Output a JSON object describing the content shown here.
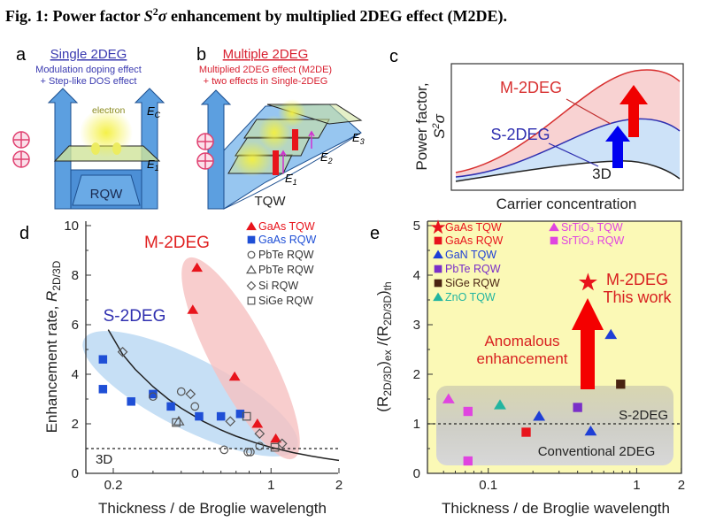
{
  "figure": {
    "title_pre": "Fig. 1: Power factor ",
    "title_s": "S",
    "title_sup": "2",
    "title_sigma": "σ",
    "title_post": " enhancement by multiplied 2DEG effect (M2DE)."
  },
  "colors": {
    "red": "#e8141c",
    "blue": "#1f4fd6",
    "navy": "#3a3ab0",
    "well_fill": "#5c9fe0",
    "well_stroke": "#1d4f8f",
    "panel_e_bg": "#fbf9b6",
    "teal": "#22b5a0",
    "magenta": "#e044e0",
    "purple": "#7a2fc8",
    "brown": "#4a2412"
  },
  "panel_a": {
    "label": "a",
    "heading": "Single 2DEG",
    "line1": "Modulation doping effect",
    "line2": "+ Step-like DOS effect",
    "electron": "electron",
    "ec": "E",
    "ec_sub": "C",
    "e1": "E",
    "e1_sub": "1",
    "well": "RQW",
    "donor_icon": "plus-circle-icon"
  },
  "panel_b": {
    "label": "b",
    "heading": "Multiple 2DEG",
    "line1": "Multiplied 2DEG effect (M2DE)",
    "line2": "+ two effects in Single-2DEG",
    "e1": "E",
    "e1_sub": "1",
    "e2": "E",
    "e2_sub": "2",
    "e3": "E",
    "e3_sub": "3",
    "well": "TQW",
    "donor_icon": "plus-circle-icon"
  },
  "panel_c": {
    "label": "c",
    "ylabel": "Power factor,",
    "ylabel_s": "S",
    "ylabel_sup": "2",
    "ylabel_sigma": "σ",
    "xlabel": "Carrier concentration",
    "curve_m": "M-2DEG",
    "curve_s": "S-2DEG",
    "curve_3d": "3D"
  },
  "chart_data": [
    {
      "panel": "d",
      "type": "scatter",
      "xlabel": "Thickness / de Broglie wavelength",
      "ylabel_pre": "Enhancement rate, ",
      "ylabel_var": "R",
      "ylabel_sub": "2D/3D",
      "xscale": "log",
      "xlim": [
        0.15,
        2.1
      ],
      "ylim": [
        0,
        10
      ],
      "xticks": [
        "0.2",
        "1",
        "2"
      ],
      "yticks": [
        "0",
        "2",
        "4",
        "6",
        "8",
        "10"
      ],
      "legend": "top-right",
      "annotations": {
        "m2deg": "M-2DEG",
        "s2deg": "S-2DEG",
        "threed": "3D"
      },
      "reference_line_y": 1,
      "fit_curve": {
        "x": [
          0.19,
          0.22,
          0.25,
          0.3,
          0.35,
          0.4,
          0.5,
          0.6,
          0.7,
          0.85,
          1.0,
          1.25,
          1.5,
          1.75,
          2.0
        ],
        "y": [
          5.8,
          4.8,
          4.2,
          3.5,
          3.0,
          2.63,
          2.1,
          1.75,
          1.5,
          1.24,
          1.05,
          0.84,
          0.7,
          0.6,
          0.52
        ]
      },
      "series": [
        {
          "name": "GaAs TQW",
          "marker": "triangle",
          "filled": true,
          "color": "#e8141c",
          "points": [
            [
              0.47,
              8.3
            ],
            [
              0.45,
              6.6
            ],
            [
              0.69,
              3.9
            ],
            [
              0.87,
              2.0
            ],
            [
              1.05,
              1.4
            ]
          ]
        },
        {
          "name": "GaAs RQW",
          "marker": "square",
          "filled": true,
          "color": "#1f4fd6",
          "points": [
            [
              0.18,
              4.6
            ],
            [
              0.18,
              3.4
            ],
            [
              0.24,
              2.9
            ],
            [
              0.3,
              3.2
            ],
            [
              0.36,
              2.7
            ],
            [
              0.48,
              2.3
            ],
            [
              0.6,
              2.3
            ],
            [
              0.73,
              2.4
            ]
          ]
        },
        {
          "name": "PbTe RQW",
          "marker": "circle",
          "filled": false,
          "color": "#555555",
          "points": [
            [
              0.4,
              3.3
            ],
            [
              0.3,
              3.1
            ],
            [
              0.46,
              2.7
            ],
            [
              0.62,
              0.95
            ],
            [
              0.79,
              0.86
            ],
            [
              0.81,
              0.86
            ],
            [
              0.89,
              1.1
            ]
          ]
        },
        {
          "name": "PbTe RQW",
          "marker": "triangle",
          "filled": false,
          "color": "#555555",
          "points": [
            [
              0.39,
              2.1
            ]
          ]
        },
        {
          "name": "Si RQW",
          "marker": "diamond",
          "filled": false,
          "color": "#555555",
          "points": [
            [
              0.22,
              4.9
            ],
            [
              0.44,
              3.2
            ],
            [
              0.66,
              2.1
            ],
            [
              0.89,
              1.6
            ],
            [
              1.12,
              1.2
            ]
          ]
        },
        {
          "name": "SiGe RQW",
          "marker": "square",
          "filled": false,
          "color": "#555555",
          "points": [
            [
              0.38,
              2.05
            ],
            [
              0.78,
              2.3
            ],
            [
              1.04,
              1.05
            ]
          ]
        }
      ]
    },
    {
      "panel": "e",
      "type": "scatter",
      "xlabel": "Thickness / de Broglie wavelength",
      "ylabel_a": "(R",
      "ylabel_a_sub": "2D/3D",
      "ylabel_b": ")",
      "ylabel_b_sub": "ex",
      "ylabel_c": " /(R",
      "ylabel_c_sub": "2D/3D",
      "ylabel_d": ")",
      "ylabel_d_sub": "th",
      "xscale": "log",
      "xlim": [
        0.04,
        2
      ],
      "ylim": [
        0,
        5
      ],
      "xticks": [
        "0.1",
        "1",
        "2"
      ],
      "yticks": [
        "0",
        "1",
        "2",
        "3",
        "4",
        "5"
      ],
      "legend": "top-left",
      "reference_line_y": 1,
      "annotations": {
        "m2deg": "M-2DEG",
        "this_work": "This work",
        "anomalous": "Anomalous",
        "enhancement": "enhancement",
        "s2deg": "S-2DEG",
        "conventional": "Conventional 2DEG"
      },
      "series": [
        {
          "name": "GaAs TQW",
          "marker": "star",
          "filled": true,
          "color": "#e8141c",
          "points": [
            [
              0.47,
              3.85
            ]
          ]
        },
        {
          "name": "GaAs RQW",
          "marker": "square",
          "filled": true,
          "color": "#e8141c",
          "points": [
            [
              0.18,
              0.83
            ]
          ]
        },
        {
          "name": "GaN TQW",
          "marker": "triangle",
          "filled": true,
          "color": "#1f3fd6",
          "points": [
            [
              0.22,
              1.15
            ],
            [
              0.49,
              0.85
            ],
            [
              0.67,
              2.8
            ]
          ]
        },
        {
          "name": "PbTe RQW",
          "marker": "square",
          "filled": true,
          "color": "#7a2fc8",
          "points": [
            [
              0.4,
              1.33
            ]
          ]
        },
        {
          "name": "SiGe RQW",
          "marker": "square",
          "filled": true,
          "color": "#4a2412",
          "points": [
            [
              0.78,
              1.8
            ]
          ]
        },
        {
          "name": "ZnO TQW",
          "marker": "triangle",
          "filled": true,
          "color": "#22b5a0",
          "points": [
            [
              0.12,
              1.38
            ]
          ]
        },
        {
          "name": "SrTiO₃ TQW",
          "marker": "triangle",
          "filled": true,
          "color": "#e044e0",
          "points": [
            [
              0.054,
              1.5
            ]
          ]
        },
        {
          "name": "SrTiO₃ RQW",
          "marker": "square",
          "filled": true,
          "color": "#e044e0",
          "points": [
            [
              0.073,
              1.25
            ],
            [
              0.073,
              0.25
            ]
          ]
        }
      ]
    }
  ]
}
